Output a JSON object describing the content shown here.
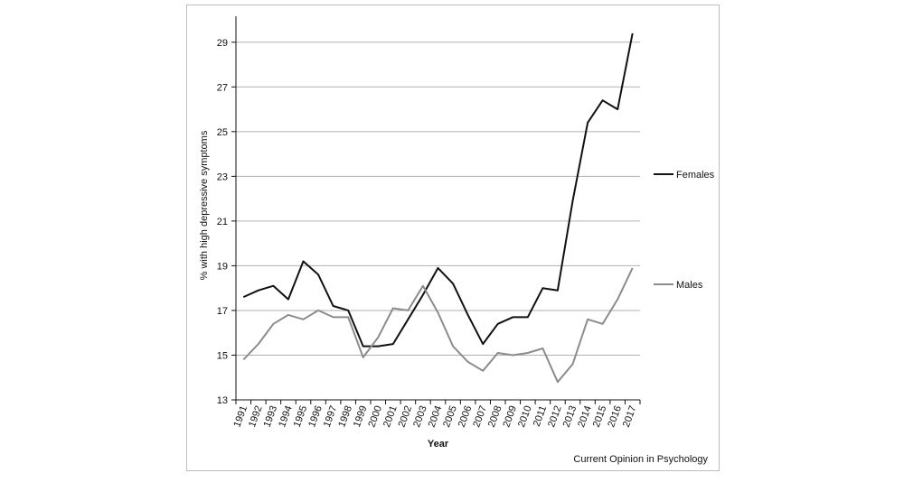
{
  "chart_data": {
    "type": "line",
    "xlabel": "Year",
    "ylabel": "% with high depressive symptoms",
    "ylim": [
      13,
      30
    ],
    "yticks": [
      13,
      15,
      17,
      19,
      21,
      23,
      25,
      27,
      29
    ],
    "grid": true,
    "legend_position": "right",
    "categories": [
      "1991",
      "1992",
      "1993",
      "1994",
      "1995",
      "1996",
      "1997",
      "1998",
      "1999",
      "2000",
      "2001",
      "2002",
      "2003",
      "2004",
      "2005",
      "2006",
      "2007",
      "2008",
      "2009",
      "2010",
      "2011",
      "2012",
      "2013",
      "2014",
      "2015",
      "2016",
      "2017"
    ],
    "series": [
      {
        "name": "Females",
        "color": "#111111",
        "values": [
          17.6,
          17.9,
          18.1,
          17.5,
          19.2,
          18.6,
          17.2,
          17.0,
          15.4,
          15.4,
          15.5,
          16.6,
          17.7,
          18.9,
          18.2,
          16.8,
          15.5,
          16.4,
          16.7,
          16.7,
          18.0,
          17.9,
          21.9,
          25.4,
          26.4,
          26.0,
          29.4
        ]
      },
      {
        "name": "Males",
        "color": "#8c8c8c",
        "values": [
          14.8,
          15.5,
          16.4,
          16.8,
          16.6,
          17.0,
          16.7,
          16.7,
          14.9,
          15.8,
          17.1,
          17.0,
          18.1,
          16.9,
          15.4,
          14.7,
          14.3,
          15.1,
          15.0,
          15.1,
          15.3,
          13.8,
          14.6,
          16.6,
          16.4,
          17.5,
          18.9
        ]
      }
    ]
  },
  "source": "Current Opinion in Psychology"
}
